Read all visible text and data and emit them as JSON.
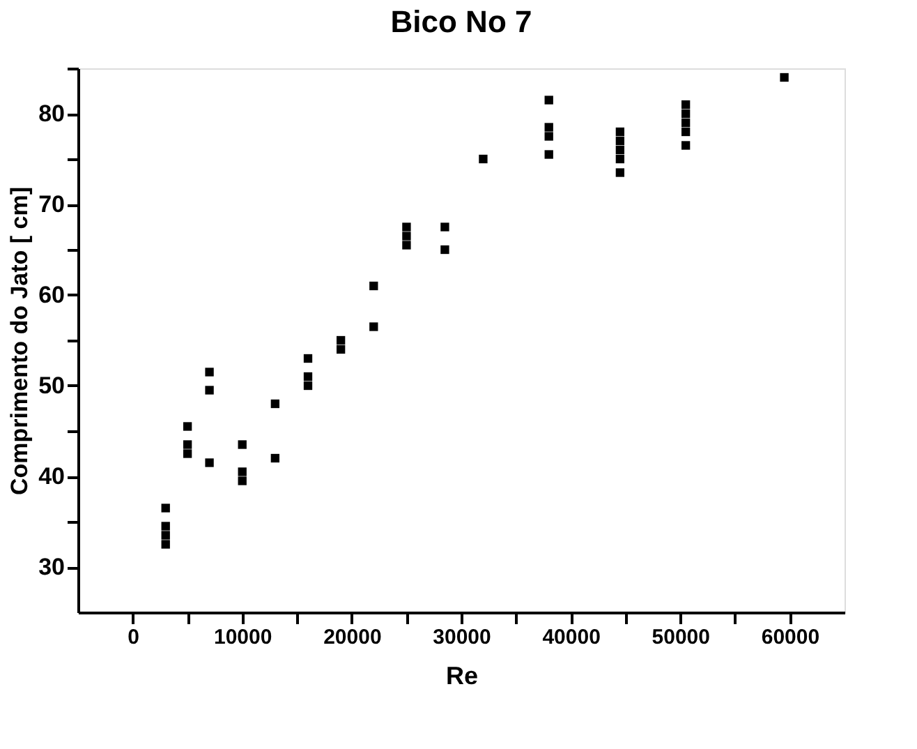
{
  "chart_data": {
    "type": "scatter",
    "title": "Bico No 7",
    "xlabel": "Re",
    "ylabel": "Comprimento do Jato [ cm]",
    "marker": "square",
    "grid": false,
    "legend": false,
    "xlim": [
      -5000,
      65000
    ],
    "ylim": [
      25,
      85
    ],
    "xticks": [
      0,
      {
        "value": 5000,
        "label": null
      },
      10000,
      {
        "value": 15000,
        "label": null
      },
      20000,
      {
        "value": 25000,
        "label": null
      },
      30000,
      {
        "value": 35000,
        "label": null
      },
      40000,
      {
        "value": 45000,
        "label": null
      },
      50000,
      {
        "value": 55000,
        "label": null
      },
      60000
    ],
    "yticks": [
      30,
      {
        "value": 35,
        "label": null
      },
      40,
      {
        "value": 45,
        "label": null
      },
      50,
      {
        "value": 55,
        "label": null
      },
      60,
      {
        "value": 65,
        "label": null
      },
      70,
      {
        "value": 75,
        "label": null
      },
      80,
      {
        "value": 85,
        "label": null
      }
    ],
    "series": [
      {
        "color": "#000000",
        "x": [
          3000,
          3000,
          3000,
          3000,
          5000,
          5000,
          5000,
          7000,
          7000,
          7000,
          10000,
          10000,
          10000,
          13000,
          13000,
          16000,
          16000,
          16000,
          19000,
          19000,
          22000,
          22000,
          25000,
          25000,
          25000,
          28500,
          28500,
          32000,
          38000,
          38000,
          38000,
          38000,
          44500,
          44500,
          44500,
          44500,
          44500,
          50500,
          50500,
          50500,
          50500,
          50500,
          59500
        ],
        "values": [
          36.5,
          34.5,
          33.5,
          32.5,
          45.5,
          43.5,
          42.5,
          51.5,
          49.5,
          41.5,
          43.5,
          40.5,
          39.5,
          48,
          42,
          53,
          51,
          50,
          55,
          54,
          61,
          56.5,
          67.5,
          66.5,
          65.5,
          67.5,
          65,
          75,
          81.5,
          78.5,
          77.5,
          75.5,
          78,
          77,
          76,
          75,
          73.5,
          81,
          80,
          79,
          78,
          76.5,
          84
        ]
      }
    ]
  }
}
